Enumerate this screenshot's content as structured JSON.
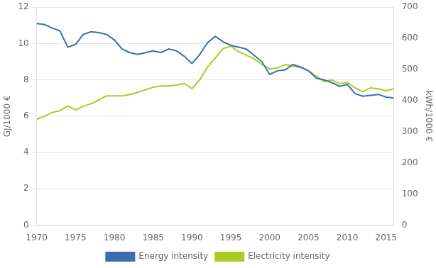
{
  "chart_data": {
    "type": "line",
    "x": [
      1970,
      1971,
      1972,
      1973,
      1974,
      1975,
      1976,
      1977,
      1978,
      1979,
      1980,
      1981,
      1982,
      1983,
      1984,
      1985,
      1986,
      1987,
      1988,
      1989,
      1990,
      1991,
      1992,
      1993,
      1994,
      1995,
      1996,
      1997,
      1998,
      1999,
      2000,
      2001,
      2002,
      2003,
      2004,
      2005,
      2006,
      2007,
      2008,
      2009,
      2010,
      2011,
      2012,
      2013,
      2014,
      2015,
      2016
    ],
    "series": [
      {
        "name": "Energy intensity",
        "color": "#3a6eae",
        "values": [
          11.1,
          11.05,
          10.85,
          10.7,
          9.8,
          9.95,
          10.5,
          10.65,
          10.6,
          10.5,
          10.2,
          9.7,
          9.5,
          9.4,
          9.5,
          9.6,
          9.5,
          9.7,
          9.6,
          9.3,
          8.9,
          9.4,
          10.05,
          10.4,
          10.1,
          9.9,
          9.8,
          9.7,
          9.35,
          9.0,
          8.3,
          8.5,
          8.55,
          8.85,
          8.7,
          8.5,
          8.1,
          8.0,
          7.85,
          7.65,
          7.75,
          7.25,
          7.1,
          7.15,
          7.2,
          7.05,
          7.0
        ]
      },
      {
        "name": "Electricity intensity",
        "color": "#aacc22",
        "axis": "y2",
        "values": [
          340,
          350,
          362,
          368,
          383,
          370,
          382,
          390,
          403,
          415,
          415,
          415,
          420,
          426,
          435,
          443,
          447,
          447,
          450,
          455,
          438,
          467,
          508,
          537,
          567,
          575,
          557,
          546,
          534,
          516,
          502,
          505,
          516,
          511,
          507,
          496,
          479,
          461,
          467,
          455,
          458,
          441,
          429,
          441,
          438,
          432,
          438
        ]
      }
    ],
    "ylabel": "GJ/1000 €",
    "y2label": "kWh/1000 €",
    "xlim": [
      1970,
      2016
    ],
    "xticks": [
      1970,
      1975,
      1980,
      1985,
      1990,
      1995,
      2000,
      2005,
      2010,
      2015
    ],
    "ylim": [
      0,
      12
    ],
    "yticks": [
      0,
      2,
      4,
      6,
      8,
      10,
      12
    ],
    "y2lim": [
      0,
      700
    ],
    "y2ticks": [
      0,
      100,
      200,
      300,
      400,
      500,
      600,
      700
    ],
    "grid": true,
    "legend": "bottom"
  }
}
